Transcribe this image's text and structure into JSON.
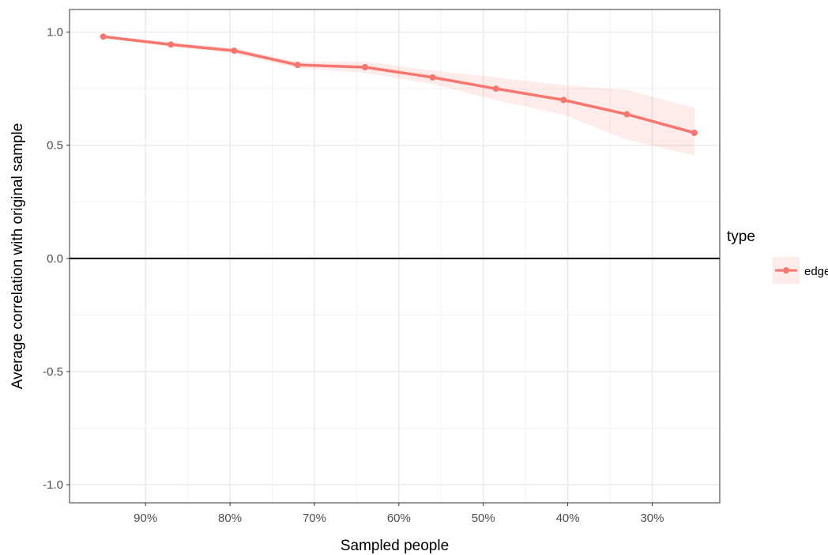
{
  "chart_data": {
    "type": "line",
    "xlabel": "Sampled people",
    "ylabel": "Average correlation with original sample",
    "x_ticks": [
      "90%",
      "80%",
      "70%",
      "60%",
      "50%",
      "40%",
      "30%"
    ],
    "x_tick_values": [
      90,
      80,
      70,
      60,
      50,
      40,
      30
    ],
    "x_reversed": true,
    "xlim": [
      99,
      22
    ],
    "ylim": [
      -1.08,
      1.1
    ],
    "y_ticks": [
      1.0,
      0.5,
      0.0,
      -0.5,
      -1.0
    ],
    "y_tick_labels": [
      "1.0",
      "0.5",
      "0.0",
      "-0.5",
      "-1.0"
    ],
    "hline": 0,
    "grid": true,
    "legend_position": "right",
    "legend_title": "type",
    "series": [
      {
        "name": "edge",
        "color": "#F8766D",
        "x": [
          95,
          87,
          79.5,
          72,
          64,
          56,
          48.5,
          40.5,
          33,
          25
        ],
        "y": [
          0.98,
          0.945,
          0.918,
          0.855,
          0.845,
          0.8,
          0.75,
          0.7,
          0.637,
          0.555
        ],
        "lower": [
          0.975,
          0.935,
          0.905,
          0.84,
          0.82,
          0.77,
          0.7,
          0.635,
          0.525,
          0.455
        ],
        "upper": [
          0.985,
          0.955,
          0.93,
          0.87,
          0.87,
          0.83,
          0.8,
          0.765,
          0.745,
          0.665
        ]
      }
    ]
  }
}
